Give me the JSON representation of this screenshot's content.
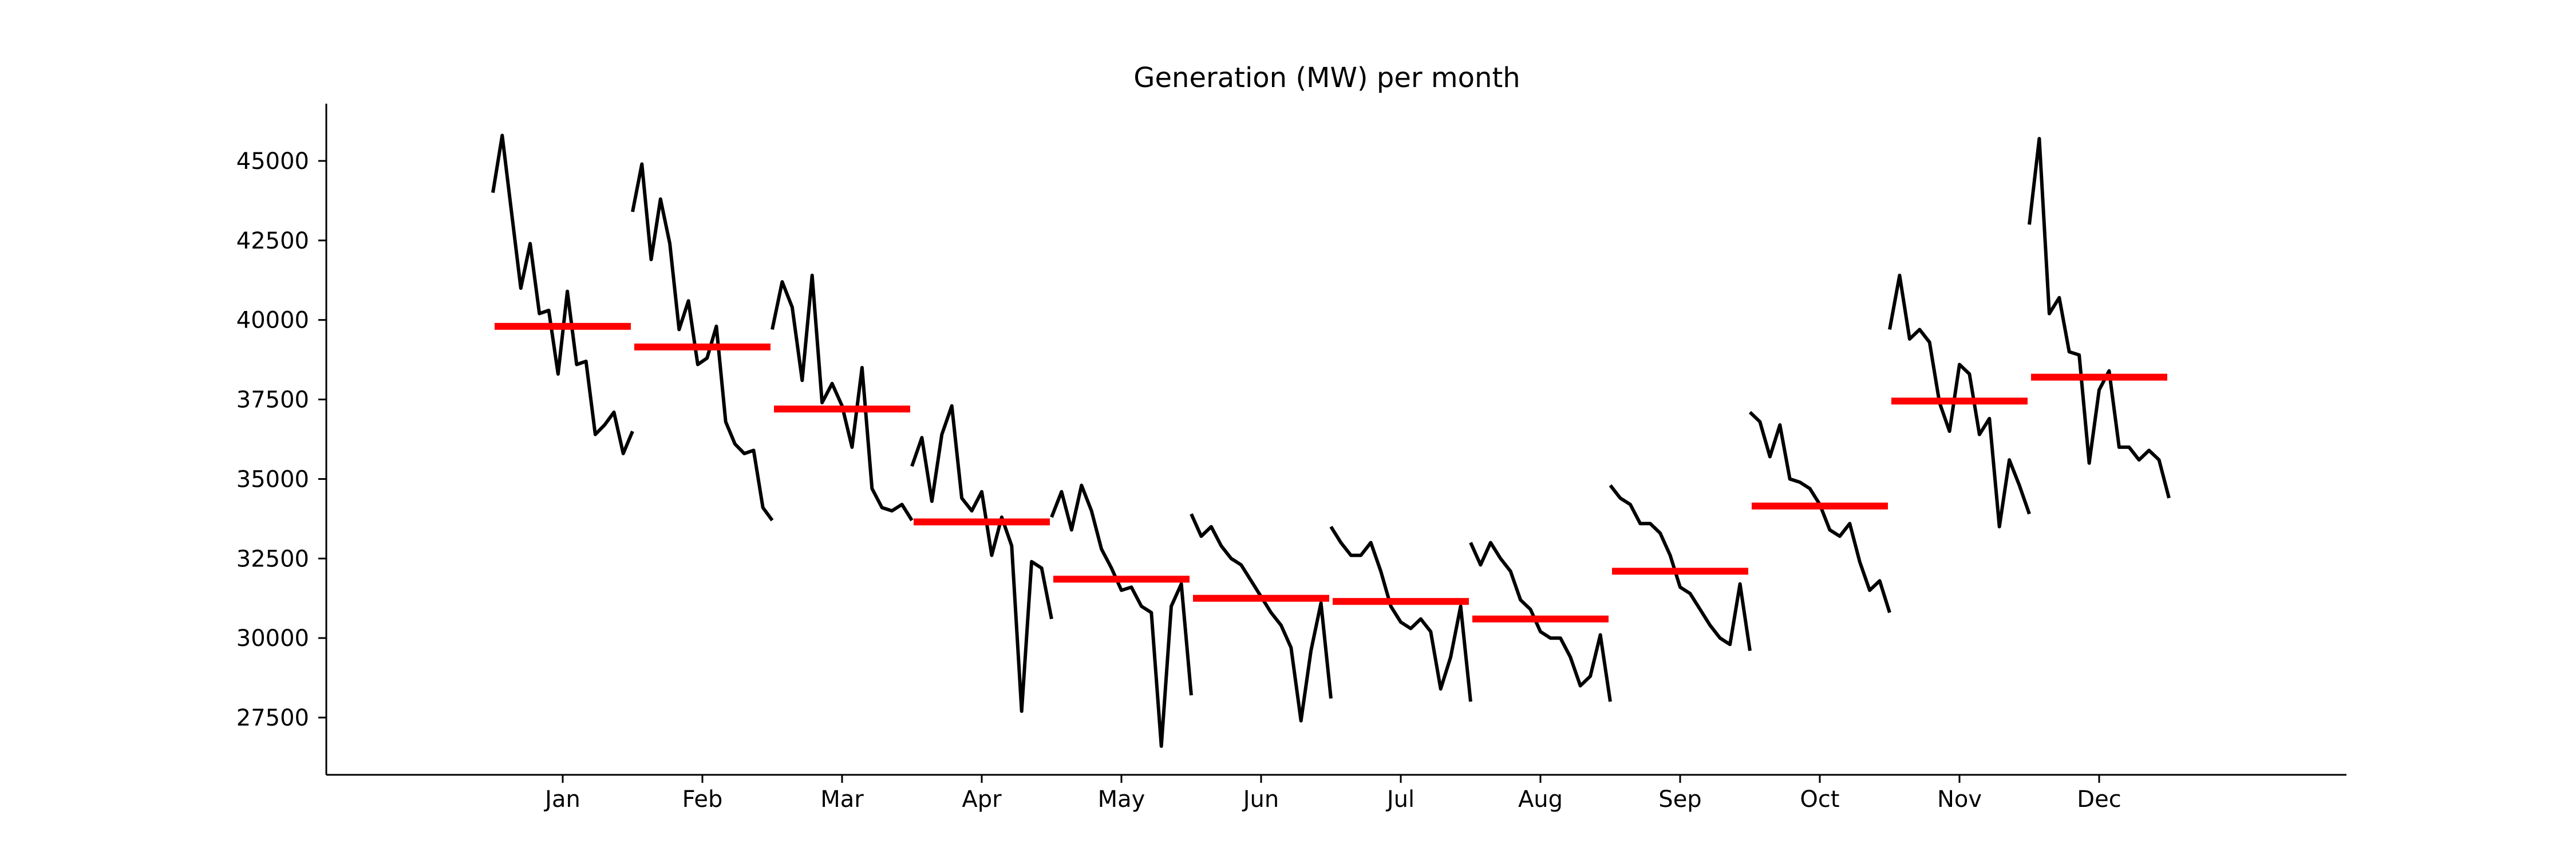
{
  "chart_data": {
    "type": "line",
    "title": "Generation (MW) per month",
    "xlabel": "",
    "ylabel": "",
    "yticks": [
      27500,
      30000,
      32500,
      35000,
      37500,
      40000,
      42500,
      45000
    ],
    "ylim": [
      25700,
      46800
    ],
    "grid": false,
    "legend": "none",
    "colors": {
      "series": "#000000",
      "mean": "#ff0000"
    },
    "months": [
      {
        "label": "Jan",
        "mean": 39800,
        "values": [
          44000,
          45800,
          43400,
          41000,
          42400,
          40200,
          40300,
          38300,
          40900,
          38600,
          38700,
          36400,
          36700,
          37100,
          35800,
          36500
        ]
      },
      {
        "label": "Feb",
        "mean": 39150,
        "values": [
          43400,
          44900,
          41900,
          43800,
          42400,
          39700,
          40600,
          38600,
          38800,
          39800,
          36800,
          36100,
          35800,
          35900,
          34100,
          33700
        ]
      },
      {
        "label": "Mar",
        "mean": 37200,
        "values": [
          39700,
          41200,
          40400,
          38100,
          41400,
          37400,
          38000,
          37300,
          36000,
          38500,
          34700,
          34100,
          34000,
          34200,
          33700
        ]
      },
      {
        "label": "Apr",
        "mean": 33650,
        "values": [
          35400,
          36300,
          34300,
          36400,
          37300,
          34400,
          34000,
          34600,
          32600,
          33800,
          32900,
          27700,
          32400,
          32200,
          30600
        ]
      },
      {
        "label": "May",
        "mean": 31850,
        "values": [
          33800,
          34600,
          33400,
          34800,
          34000,
          32800,
          32200,
          31500,
          31600,
          31000,
          30800,
          26600,
          31000,
          31700,
          28200
        ]
      },
      {
        "label": "Jun",
        "mean": 31250,
        "values": [
          33900,
          33200,
          33500,
          32900,
          32500,
          32300,
          31800,
          31300,
          30800,
          30400,
          29700,
          27400,
          29600,
          31100,
          28100
        ]
      },
      {
        "label": "Jul",
        "mean": 31150,
        "values": [
          33500,
          33000,
          32600,
          32600,
          33000,
          32100,
          31000,
          30500,
          30300,
          30600,
          30200,
          28400,
          29400,
          31000,
          28000
        ]
      },
      {
        "label": "Aug",
        "mean": 30600,
        "values": [
          33000,
          32300,
          33000,
          32500,
          32100,
          31200,
          30900,
          30200,
          30000,
          30000,
          29400,
          28500,
          28800,
          30100,
          28000
        ]
      },
      {
        "label": "Sep",
        "mean": 32100,
        "values": [
          34800,
          34400,
          34200,
          33600,
          33600,
          33300,
          32600,
          31600,
          31400,
          30900,
          30400,
          30000,
          29800,
          31700,
          29600
        ]
      },
      {
        "label": "Oct",
        "mean": 34150,
        "values": [
          37100,
          36800,
          35700,
          36700,
          35000,
          34900,
          34700,
          34200,
          33400,
          33200,
          33600,
          32400,
          31500,
          31800,
          30800
        ]
      },
      {
        "label": "Nov",
        "mean": 37450,
        "values": [
          39700,
          41400,
          39400,
          39700,
          39300,
          37400,
          36500,
          38600,
          38300,
          36400,
          36900,
          33500,
          35600,
          34800,
          33900
        ]
      },
      {
        "label": "Dec",
        "mean": 38200,
        "values": [
          43000,
          45700,
          40200,
          40700,
          39000,
          38900,
          35500,
          37800,
          38400,
          36000,
          36000,
          35600,
          35900,
          35600,
          34400
        ]
      }
    ]
  }
}
